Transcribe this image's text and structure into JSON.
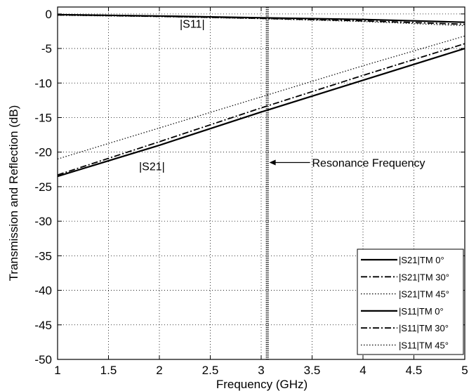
{
  "chart_data": {
    "type": "line",
    "title": "",
    "xlabel": "Frequency (GHz)",
    "ylabel": "Transmission and Reflection (dB)",
    "xlim": [
      1,
      5
    ],
    "ylim": [
      -50,
      1
    ],
    "xticks": [
      1,
      1.5,
      2,
      2.5,
      3,
      3.5,
      4,
      4.5,
      5
    ],
    "xtick_labels": [
      "1",
      "1.5",
      "2",
      "2.5",
      "3",
      "3.5",
      "4",
      "4.5",
      "5"
    ],
    "yticks": [
      0,
      -5,
      -10,
      -15,
      -20,
      -25,
      -30,
      -35,
      -40,
      -45,
      -50
    ],
    "ytick_labels": [
      "0",
      "-5",
      "-10",
      "-15",
      "-20",
      "-25",
      "-30",
      "-35",
      "-40",
      "-45",
      "-50"
    ],
    "grid": true,
    "legend_position": "bottom-right",
    "series": [
      {
        "name": "|S21|TM 0°",
        "style": "solid",
        "x": [
          1,
          2,
          3,
          4,
          5
        ],
        "values": [
          -23.5,
          -19.0,
          -14.2,
          -9.6,
          -5.0
        ]
      },
      {
        "name": "|S21|TM 30°",
        "style": "dashdot",
        "x": [
          1,
          2,
          3,
          4,
          5
        ],
        "values": [
          -23.3,
          -18.5,
          -13.6,
          -8.9,
          -4.3
        ]
      },
      {
        "name": "|S21|TM 45°",
        "style": "dotted",
        "x": [
          1,
          2,
          3,
          4,
          5
        ],
        "values": [
          -21.0,
          -16.5,
          -12.0,
          -7.5,
          -3.2
        ]
      },
      {
        "name": "|S11|TM 0°",
        "style": "solid",
        "x": [
          1,
          2,
          3,
          4,
          5
        ],
        "values": [
          -0.1,
          -0.3,
          -0.55,
          -0.8,
          -1.2
        ]
      },
      {
        "name": "|S11|TM 30°",
        "style": "dashdot",
        "x": [
          1,
          2,
          3,
          4,
          5
        ],
        "values": [
          -0.15,
          -0.35,
          -0.65,
          -1.0,
          -1.5
        ]
      },
      {
        "name": "|S11|TM 45°",
        "style": "dotted",
        "x": [
          1,
          2,
          3,
          4,
          5
        ],
        "values": [
          -0.2,
          -0.4,
          -0.7,
          -1.1,
          -1.7
        ]
      }
    ],
    "resonance_x": 3.06,
    "annotations": {
      "s11_label": {
        "text": "|S11|",
        "x": 2.2,
        "y": -2.0
      },
      "s21_label": {
        "text": "|S21|",
        "x": 1.8,
        "y": -22.6
      },
      "resonance_label": {
        "text": "Resonance Frequency",
        "x": 3.5,
        "y": -21.5,
        "arrow_from_x": 3.48,
        "arrow_to_x": 3.08
      }
    }
  }
}
